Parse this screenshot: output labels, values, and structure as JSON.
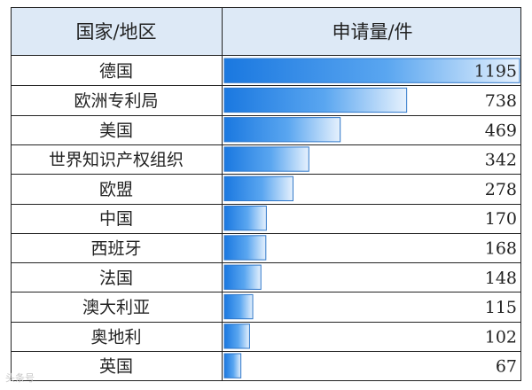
{
  "table": {
    "header_country": "国家/地区",
    "header_count": "申请量/件"
  },
  "chart_data": {
    "type": "bar",
    "orientation": "horizontal",
    "columns": [
      "国家/地区",
      "申请量/件"
    ],
    "categories": [
      "德国",
      "欧洲专利局",
      "美国",
      "世界知识产权组织",
      "欧盟",
      "中国",
      "西班牙",
      "法国",
      "澳大利亚",
      "奥地利",
      "英国"
    ],
    "values": [
      1195,
      738,
      469,
      342,
      278,
      170,
      168,
      148,
      115,
      102,
      67
    ],
    "xlim": [
      0,
      1195
    ],
    "grid": true,
    "data_labels": true
  },
  "colors": {
    "bar_strong": "#1a78e0",
    "bar_light": "#e6f1fd",
    "bar_border": "#2f77c9",
    "header_bg": "#dde9f6"
  },
  "watermark": {
    "text": "头条号"
  }
}
